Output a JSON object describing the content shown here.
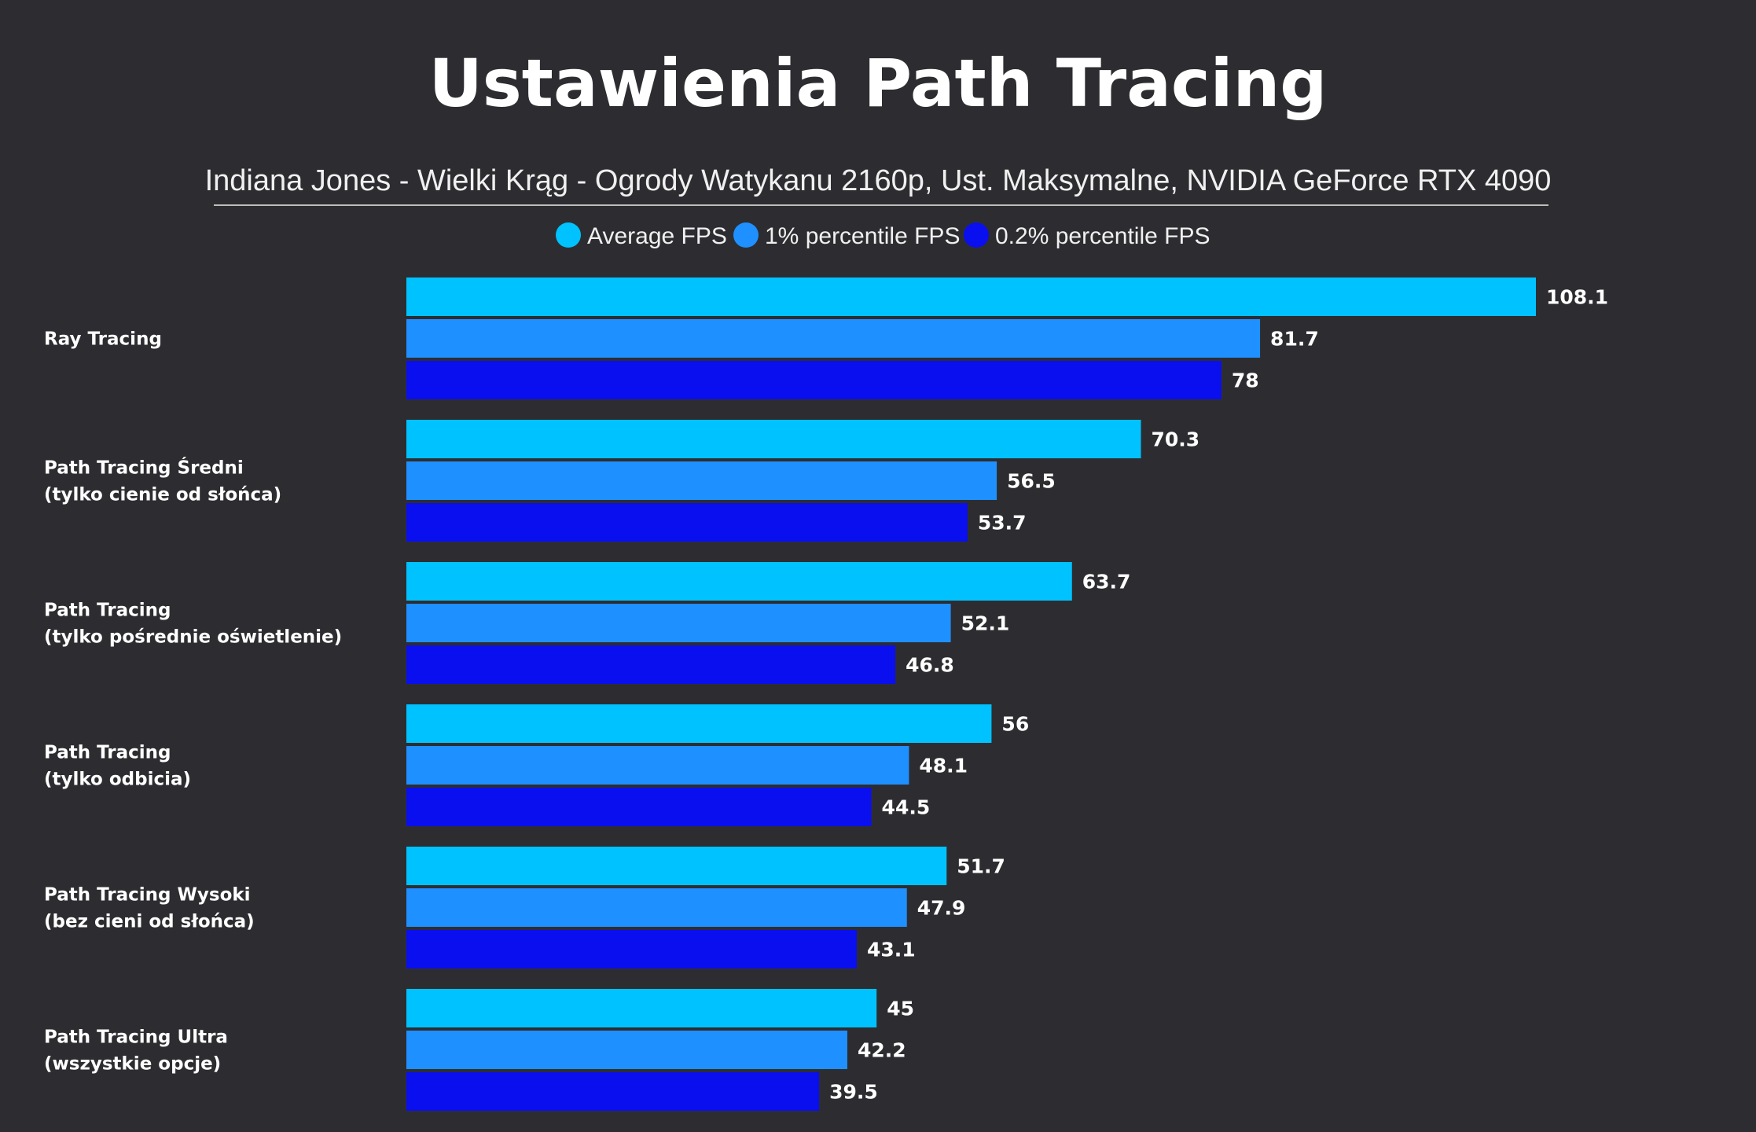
{
  "colors": {
    "background": "#2d2d31",
    "text": "#ffffff",
    "rule": "#bdbdbd"
  },
  "chart_data": {
    "type": "bar",
    "orientation": "horizontal",
    "title": "Ustawienia Path Tracing",
    "subtitle": "Indiana Jones - Wielki Krąg - Ogrody Watykanu 2160p, Ust. Maksymalne, NVIDIA GeForce RTX 4090",
    "legend_position": "top-center",
    "grid": false,
    "xlim": [
      0,
      108.1
    ],
    "categories": [
      [
        "Ray Tracing"
      ],
      [
        "Path Tracing Średni",
        "(tylko cienie od słońca)"
      ],
      [
        "Path Tracing",
        "(tylko pośrednie oświetlenie)"
      ],
      [
        "Path Tracing",
        "(tylko odbicia)"
      ],
      [
        "Path Tracing Wysoki",
        "(bez cieni od słońca)"
      ],
      [
        "Path Tracing Ultra",
        "(wszystkie opcje)"
      ]
    ],
    "series": [
      {
        "name": "Average FPS",
        "color": "#00c2ff",
        "values": [
          108.1,
          70.3,
          63.7,
          56,
          51.7,
          45
        ]
      },
      {
        "name": "1% percentile FPS",
        "color": "#1f90ff",
        "values": [
          81.7,
          56.5,
          52.1,
          48.1,
          47.9,
          42.2
        ]
      },
      {
        "name": "0.2% percentile FPS",
        "color": "#0a0ff0",
        "values": [
          78,
          53.7,
          46.8,
          44.5,
          43.1,
          39.5
        ]
      }
    ]
  }
}
